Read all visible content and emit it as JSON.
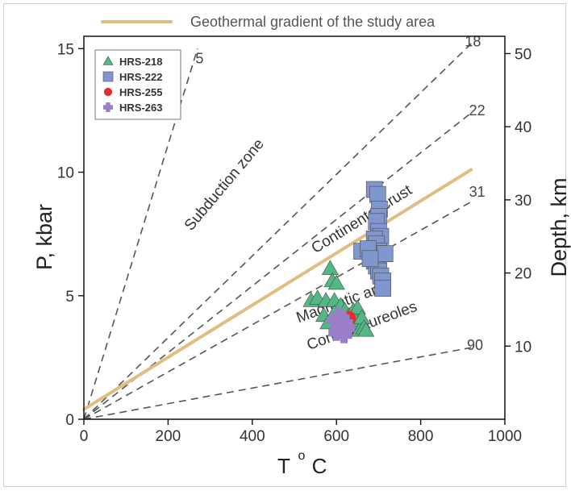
{
  "chart_data": {
    "type": "scatter",
    "xlabel": "T °C",
    "xlabel_main": "T",
    "xlabel_sup": "o",
    "xlabel_unit": "C",
    "ylabel": "P, kbar",
    "y2label": "Depth, km",
    "xlim": [
      0,
      1000
    ],
    "ylim": [
      0,
      15.5
    ],
    "xticks": [
      "0",
      "200",
      "400",
      "600",
      "800",
      "1000"
    ],
    "xtick_values": [
      0,
      200,
      400,
      600,
      800,
      1000
    ],
    "yticks": [
      "0",
      "5",
      "10",
      "15"
    ],
    "ytick_values": [
      0,
      5,
      10,
      15
    ],
    "y2ticks": [
      "10",
      "20",
      "30",
      "40",
      "50"
    ],
    "y2tick_values": [
      10,
      20,
      30,
      40,
      50
    ],
    "y2_kbar_per_km": 0.296,
    "grid": false,
    "legend_position": "top-left",
    "geotherm": {
      "name": "Geothermal gradient of the study area",
      "color": "#e0bd82",
      "x": [
        0,
        920
      ],
      "y": [
        0.4,
        10.1
      ]
    },
    "gradient_lines": [
      {
        "label": "5",
        "x1": 0,
        "y1": 0,
        "x2": 270,
        "y2": 15.0,
        "label_x": 265,
        "label_y": 14.4
      },
      {
        "label": "18",
        "x1": 0,
        "y1": 0,
        "x2": 920,
        "y2": 15.2,
        "label_x": 905,
        "label_y": 15.1
      },
      {
        "label": "22",
        "x1": 0,
        "y1": 0,
        "x2": 920,
        "y2": 12.4,
        "label_x": 915,
        "label_y": 12.3
      },
      {
        "label": "31",
        "x1": 0,
        "y1": 0,
        "x2": 920,
        "y2": 8.8,
        "label_x": 915,
        "label_y": 9.0
      },
      {
        "label": "90",
        "x1": 0,
        "y1": 0,
        "x2": 920,
        "y2": 2.9,
        "label_x": 910,
        "label_y": 2.8
      }
    ],
    "annotations": [
      {
        "text": "Subduction zone",
        "x": 255,
        "y": 7.6,
        "angle": -50
      },
      {
        "text": "Continental crust",
        "x": 550,
        "y": 6.7,
        "angle": -32
      },
      {
        "text": "Magmatic arc",
        "x": 510,
        "y": 3.9,
        "angle": -20
      },
      {
        "text": "Contact aureoles",
        "x": 535,
        "y": 2.8,
        "angle": -20
      }
    ],
    "series": [
      {
        "name": "HRS-218",
        "marker": "triangle",
        "color": "#52b886",
        "x": [
          540,
          555,
          570,
          575,
          585,
          590,
          595,
          600,
          605,
          610,
          615,
          620,
          630,
          635,
          640,
          645,
          650,
          655,
          660,
          665,
          670,
          580,
          595,
          605
        ],
        "y": [
          4.8,
          4.9,
          4.2,
          4.8,
          6.1,
          5.6,
          4.8,
          5.5,
          4.2,
          4.6,
          4.0,
          4.4,
          4.2,
          3.9,
          4.4,
          4.0,
          4.5,
          3.6,
          4.1,
          3.7,
          3.6,
          3.9,
          4.3,
          3.7
        ]
      },
      {
        "name": "HRS-222",
        "marker": "square",
        "color": "#7f96cf",
        "x": [
          690,
          698,
          702,
          700,
          695,
          700,
          705,
          690,
          695,
          700,
          660,
          690,
          690,
          700,
          695,
          700,
          710,
          705,
          710,
          710,
          715,
          675,
          680
        ],
        "y": [
          9.3,
          9.1,
          8.5,
          8.2,
          8.0,
          7.6,
          7.4,
          7.3,
          7.1,
          6.8,
          6.8,
          6.6,
          6.4,
          6.4,
          6.2,
          6.0,
          6.7,
          5.8,
          5.6,
          5.3,
          6.7,
          6.9,
          6.5
        ]
      },
      {
        "name": "HRS-255",
        "marker": "circle",
        "color": "#e52d2d",
        "x": [
          628,
          630
        ],
        "y": [
          4.0,
          4.1
        ]
      },
      {
        "name": "HRS-263",
        "marker": "plus",
        "color": "#9b7fc6",
        "x": [
          595,
          605,
          612,
          620,
          600,
          610,
          618,
          625,
          605
        ],
        "y": [
          4.0,
          3.8,
          4.1,
          3.9,
          3.5,
          3.6,
          3.4,
          3.7,
          4.2
        ]
      }
    ]
  }
}
